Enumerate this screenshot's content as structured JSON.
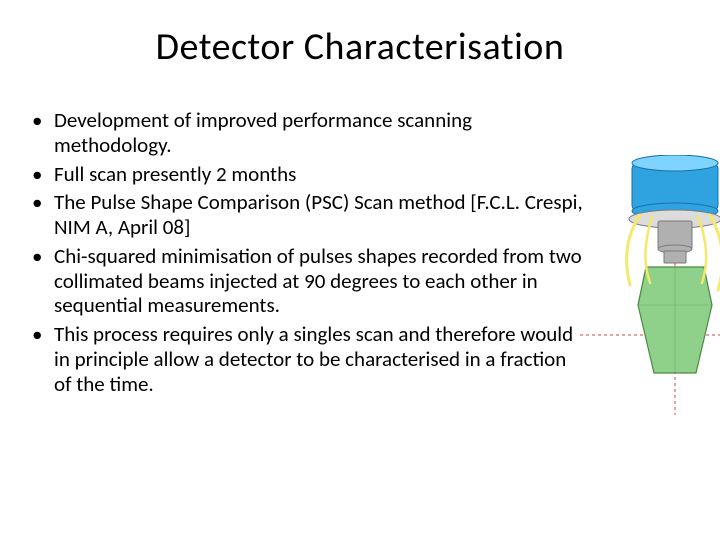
{
  "title": "Detector Characterisation",
  "bullets": [
    "Development of improved performance scanning methodology.",
    "Full scan presently 2 months",
    "The Pulse Shape Comparison (PSC) Scan method [F.C.L. Crespi, NIM A, April 08]",
    "Chi-squared minimisation of pulses shapes recorded from two collimated beams injected at 90 degrees to each other in sequential measurements.",
    "This process requires only a singles scan and therefore would in principle allow a detector to be characterised in a fraction of the time."
  ],
  "figure": {
    "housing_color": "#2fa3e0",
    "housing_highlight": "#7fd3ff",
    "housing_stroke": "#1a6fa8",
    "connector_color": "#b0b0b0",
    "connector_stroke": "#7a7a7a",
    "crystal_fill": "#8fd18a",
    "crystal_stroke": "#4a8a44",
    "wire_color": "#f5e96a",
    "crosshair_color": "#c94a4a",
    "crosshair_dash": "3,3",
    "cap_color": "#dcdcdc"
  }
}
